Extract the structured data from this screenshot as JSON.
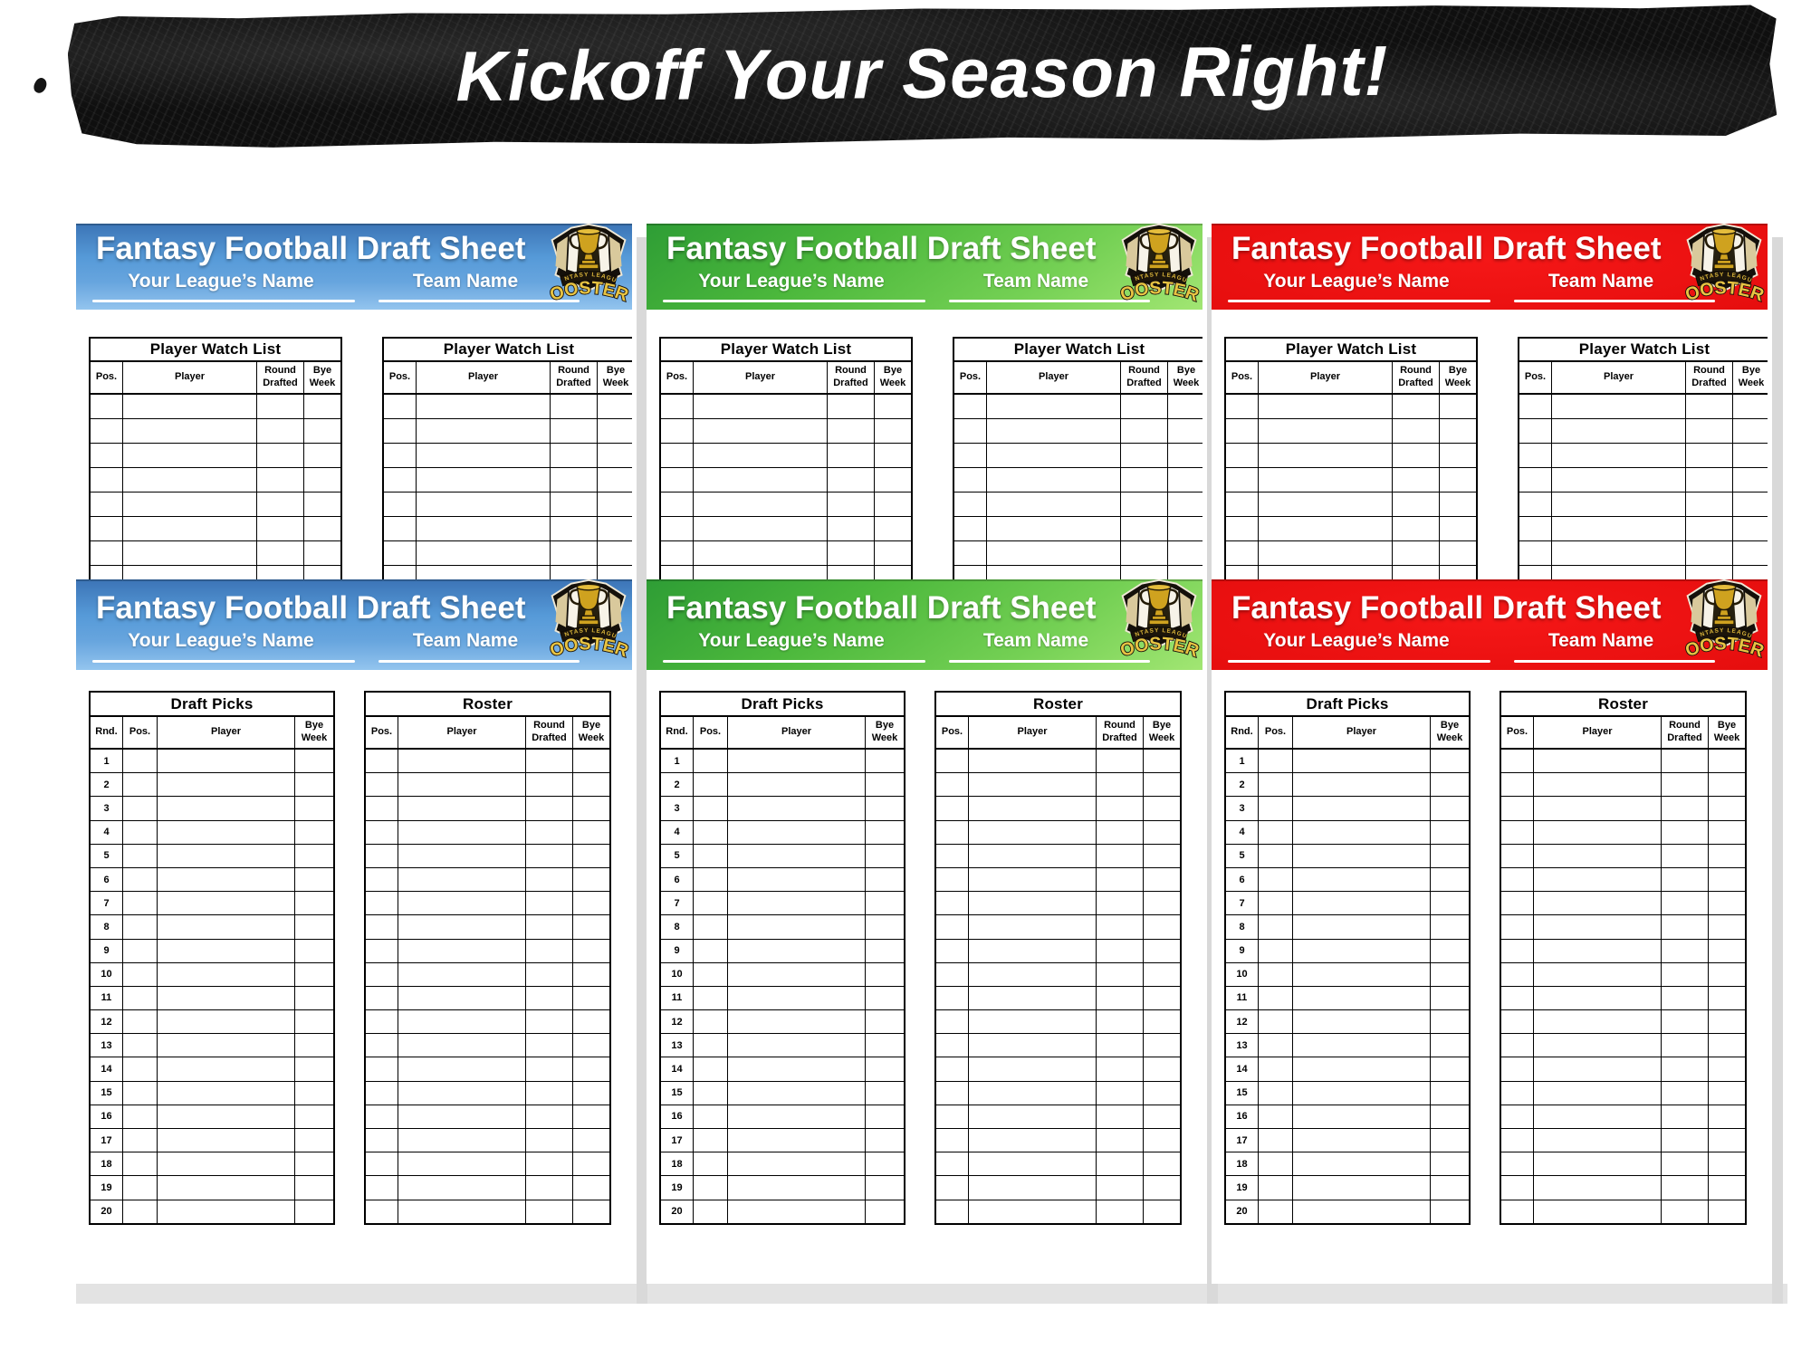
{
  "banner": {
    "title": "Kickoff Your Season Right!"
  },
  "sheet": {
    "title": "Fantasy Football Draft Sheet",
    "league_label": "Your League’s Name",
    "team_label": "Team Name",
    "logo": {
      "top_text": "FANTASY LEAGUE",
      "bottom_text": "BOOSTERS"
    }
  },
  "cards": [
    {
      "theme": "blue"
    },
    {
      "theme": "green"
    },
    {
      "theme": "red"
    }
  ],
  "themes": {
    "blue": {
      "primary": "#569ad8"
    },
    "green": {
      "primary": "#4cb83c"
    },
    "red": {
      "primary": "#e60e0e"
    }
  },
  "tables": {
    "watch_list": {
      "title": "Player Watch List",
      "columns": [
        "Pos.",
        "Player",
        "Round\nDrafted",
        "Bye\nWeek"
      ]
    },
    "draft_picks": {
      "title": "Draft Picks",
      "columns": [
        "Rnd.",
        "Pos.",
        "Player",
        "Bye\nWeek"
      ],
      "round_numbers": [
        "1",
        "2",
        "3",
        "4",
        "5",
        "6",
        "7",
        "8",
        "9",
        "10",
        "11",
        "12",
        "13",
        "14",
        "15",
        "16",
        "17",
        "18",
        "19",
        "20"
      ]
    },
    "roster": {
      "title": "Roster",
      "columns": [
        "Pos.",
        "Player",
        "Round\nDrafted",
        "Bye\nWeek"
      ]
    }
  }
}
